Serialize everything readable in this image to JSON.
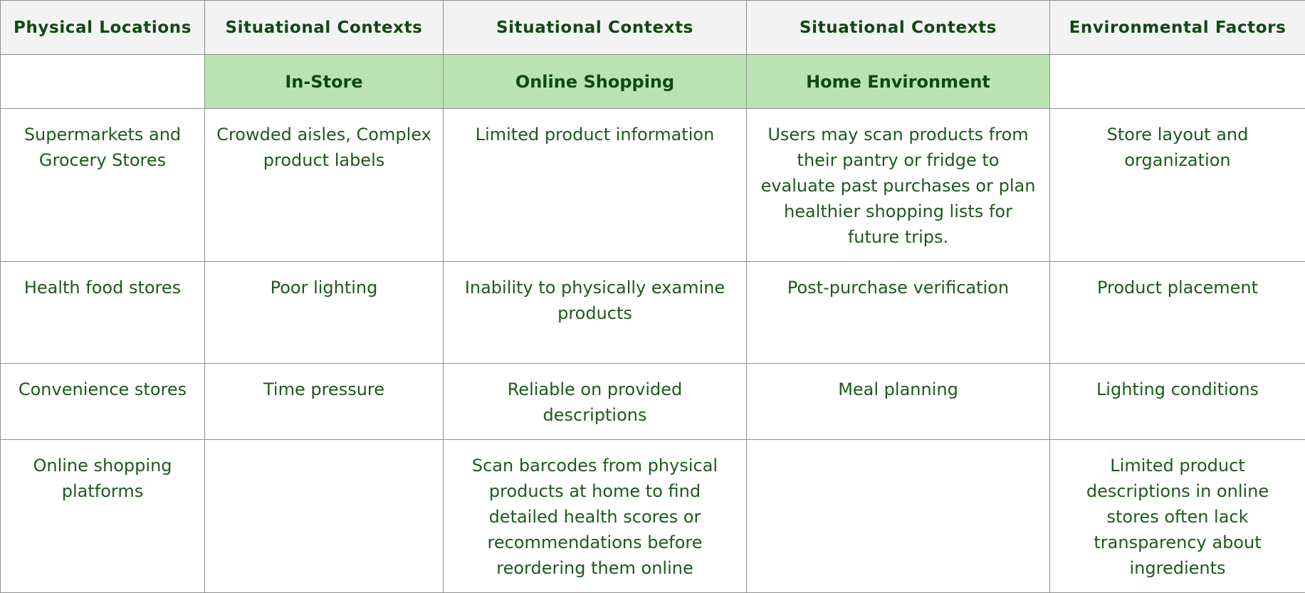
{
  "table": {
    "headers": [
      "Physical Locations",
      "Situational Contexts",
      "Situational Contexts",
      "Situational Contexts",
      "Environmental Factors"
    ],
    "subheaders": [
      "",
      "In-Store",
      "Online Shopping",
      "Home Environment",
      ""
    ],
    "rows": [
      [
        "Supermarkets and Grocery Stores",
        "Crowded aisles, Complex product labels",
        "Limited product information",
        "Users may scan products from their pantry or fridge to evaluate past purchases or plan healthier shopping lists for future trips.",
        "Store layout and organization"
      ],
      [
        "Health food stores",
        "Poor lighting",
        "Inability to physically examine products",
        "Post-purchase verification",
        "Product placement"
      ],
      [
        "Convenience stores",
        "Time pressure",
        "Reliable on provided descriptions",
        "Meal planning",
        "Lighting conditions"
      ],
      [
        "Online shopping platforms",
        "",
        "Scan barcodes from physical products at home to find detailed health scores or recommendations before reordering them online",
        "",
        "Limited product descriptions in online stores often lack transparency about ingredients"
      ]
    ],
    "colors": {
      "header_bg": "#f3f3f3",
      "subheader_bg": "#b9e4b1",
      "text": "#1c5a1c",
      "border": "#8e8e8e"
    }
  }
}
